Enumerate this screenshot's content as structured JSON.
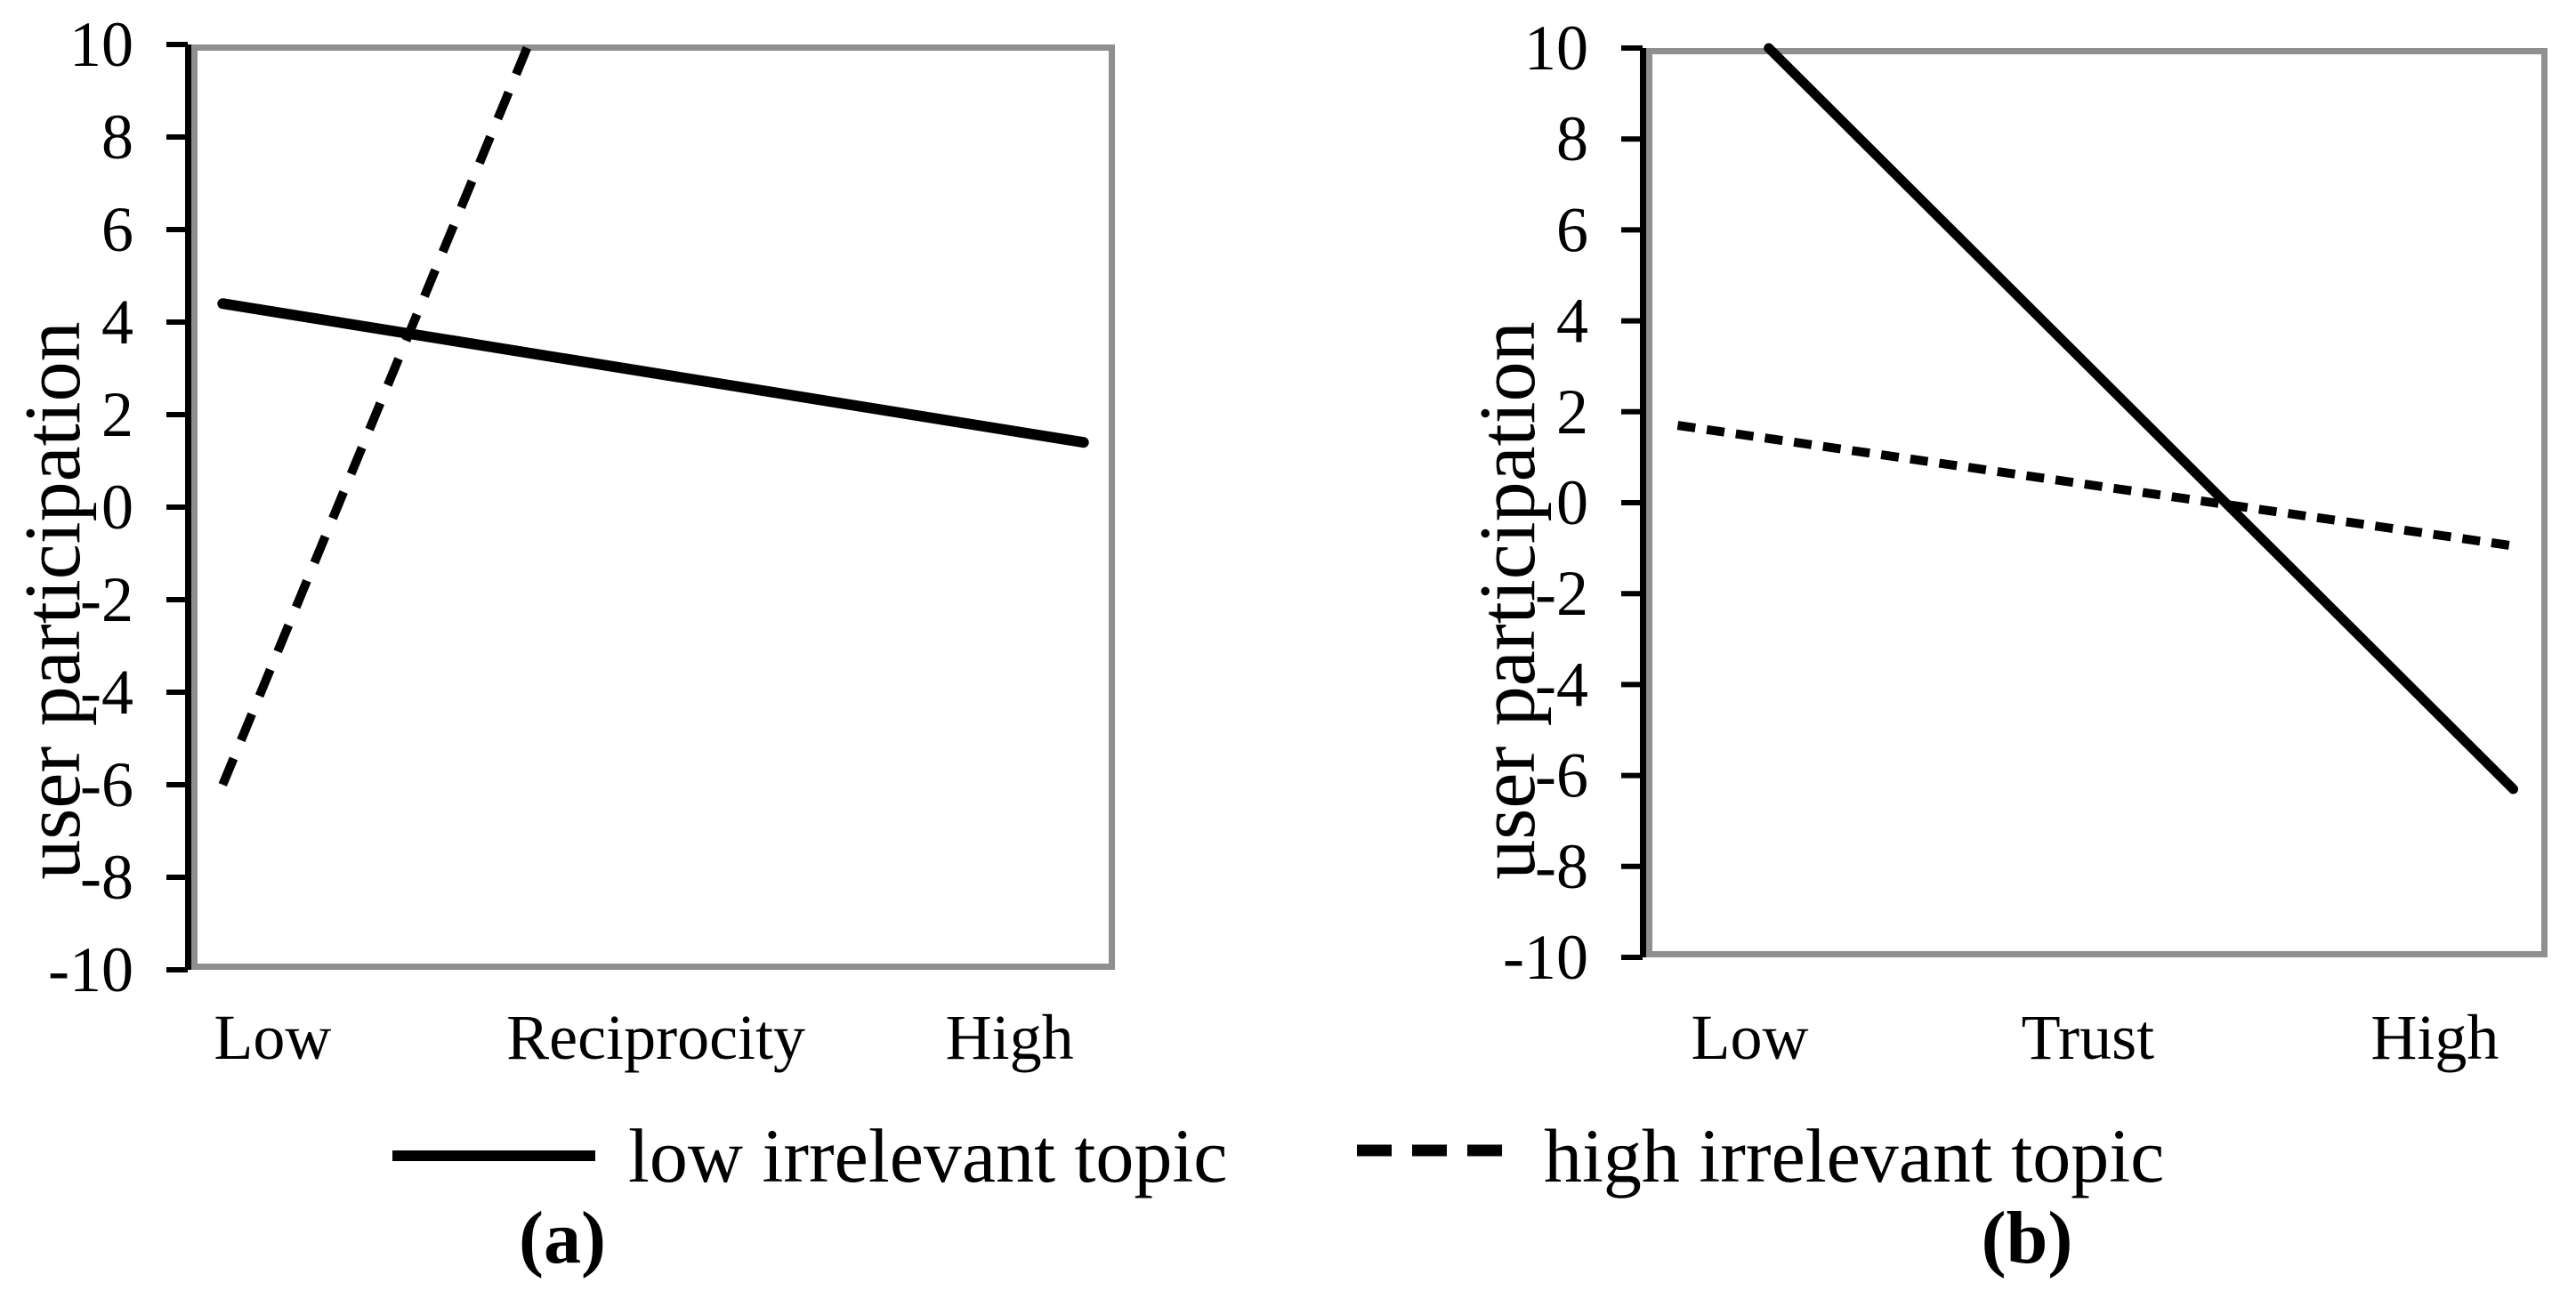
{
  "figure": {
    "background": "#ffffff",
    "colors": {
      "line": "#000000",
      "frame": "#8f8f8f",
      "text": "#000000"
    },
    "legend": {
      "position": "bottom-center",
      "items": [
        {
          "label": "low irrelevant topic",
          "style": "solid"
        },
        {
          "label": "high irrelevant topic",
          "style": "dashed"
        }
      ]
    }
  },
  "chart_data": [
    {
      "panel": "a",
      "caption": "(a)",
      "type": "line",
      "ylabel": "user participation",
      "x_axis_labels": [
        "Low",
        "Reciprocity",
        "High"
      ],
      "x_axis_moderator": "Reciprocity",
      "ylim": [
        -10,
        10
      ],
      "yticks": [
        10,
        8,
        6,
        4,
        2,
        0,
        -2,
        -4,
        -6,
        -8,
        -10
      ],
      "grid": false,
      "series": [
        {
          "name": "low irrelevant topic",
          "style": "solid",
          "points_x_fraction": [
            0.034,
            0.966
          ],
          "points_y": [
            4.4,
            1.4
          ],
          "clipped_at_top": false
        },
        {
          "name": "high irrelevant topic",
          "style": "dashed",
          "points_x_fraction": [
            0.034,
            0.365
          ],
          "points_y": [
            -6.0,
            10.0
          ],
          "clipped_at_top": true
        }
      ]
    },
    {
      "panel": "b",
      "caption": "(b)",
      "type": "line",
      "ylabel": "user participation",
      "x_axis_labels": [
        "Low",
        "Trust",
        "High"
      ],
      "x_axis_moderator": "Trust",
      "ylim": [
        -10,
        10
      ],
      "yticks": [
        10,
        8,
        6,
        4,
        2,
        0,
        -2,
        -4,
        -6,
        -8,
        -10
      ],
      "grid": false,
      "series": [
        {
          "name": "low irrelevant topic",
          "style": "solid",
          "points_x_fraction": [
            0.136,
            0.962
          ],
          "points_y": [
            10.0,
            -6.3
          ],
          "clipped_at_top": true
        },
        {
          "name": "high irrelevant topic",
          "style": "dashed",
          "points_x_fraction": [
            0.035,
            0.962
          ],
          "points_y": [
            1.7,
            -0.95
          ],
          "clipped_at_top": false
        }
      ]
    }
  ]
}
